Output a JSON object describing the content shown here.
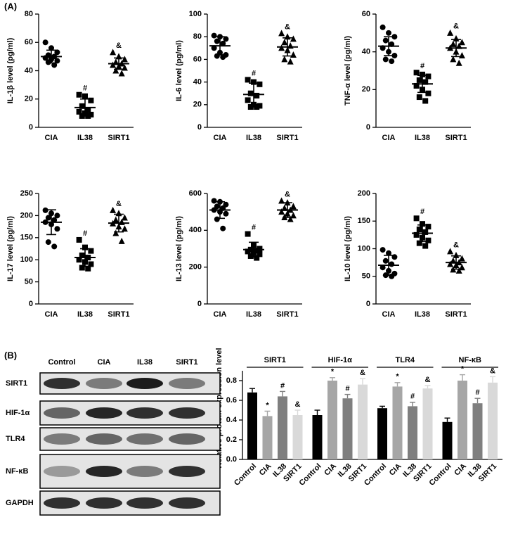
{
  "panel_labels": [
    "(A)",
    "(B)"
  ],
  "blot": {
    "columns": [
      "Control",
      "CIA",
      "IL38",
      "SIRT1"
    ],
    "rows": [
      "SIRT1",
      "HIF-1α",
      "TLR4",
      "NF-κB",
      "GAPDH"
    ]
  },
  "chart_data": [
    {
      "type": "dot",
      "ylabel": "IL-1β level (pg/ml)",
      "categories": [
        "CIA",
        "IL38",
        "SIRT1"
      ],
      "markers": [
        "circle",
        "square",
        "triangle"
      ],
      "color": "#000000",
      "points": [
        [
          60,
          56,
          53,
          51,
          50,
          49,
          48,
          47,
          46,
          44
        ],
        [
          23,
          22,
          19,
          15,
          12,
          11,
          10,
          9,
          8,
          8
        ],
        [
          53,
          50,
          48,
          46,
          45,
          44,
          43,
          42,
          40,
          38
        ]
      ],
      "means": [
        50,
        14,
        45
      ],
      "sds": [
        4.5,
        6,
        4
      ],
      "annotations": [
        null,
        "#",
        "&"
      ],
      "ylim": [
        0,
        80
      ],
      "yticks": [
        0,
        20,
        40,
        60,
        80
      ]
    },
    {
      "type": "dot",
      "ylabel": "IL-6 level (pg/ml)",
      "categories": [
        "CIA",
        "IL38",
        "SIRT1"
      ],
      "markers": [
        "circle",
        "square",
        "triangle"
      ],
      "color": "#000000",
      "points": [
        [
          81,
          80,
          78,
          76,
          74,
          70,
          66,
          64,
          63,
          62
        ],
        [
          42,
          40,
          38,
          30,
          28,
          24,
          20,
          19,
          18,
          18
        ],
        [
          83,
          80,
          78,
          75,
          72,
          70,
          68,
          64,
          60,
          58
        ]
      ],
      "means": [
        72,
        29,
        71
      ],
      "sds": [
        8,
        10,
        8
      ],
      "annotations": [
        null,
        "#",
        "&"
      ],
      "ylim": [
        0,
        100
      ],
      "yticks": [
        0,
        20,
        40,
        60,
        80,
        100
      ]
    },
    {
      "type": "dot",
      "ylabel": "TNF-α level (pg/ml)",
      "categories": [
        "CIA",
        "IL38",
        "SIRT1"
      ],
      "markers": [
        "circle",
        "square",
        "triangle"
      ],
      "color": "#000000",
      "points": [
        [
          53,
          50,
          48,
          46,
          44,
          42,
          40,
          38,
          36,
          35
        ],
        [
          29,
          28,
          27,
          25,
          24,
          22,
          20,
          18,
          16,
          14
        ],
        [
          50,
          47,
          45,
          44,
          43,
          42,
          40,
          38,
          36,
          34
        ]
      ],
      "means": [
        43,
        23,
        42
      ],
      "sds": [
        5,
        4.5,
        4.5
      ],
      "annotations": [
        null,
        "#",
        "&"
      ],
      "ylim": [
        0,
        60
      ],
      "yticks": [
        0,
        20,
        40,
        60
      ]
    },
    {
      "type": "dot",
      "ylabel": "IL-17 level (pg/ml)",
      "categories": [
        "CIA",
        "IL38",
        "SIRT1"
      ],
      "markers": [
        "circle",
        "square",
        "triangle"
      ],
      "color": "#000000",
      "points": [
        [
          212,
          205,
          200,
          195,
          190,
          185,
          180,
          170,
          140,
          130
        ],
        [
          145,
          128,
          120,
          110,
          105,
          100,
          95,
          90,
          82,
          80
        ],
        [
          212,
          205,
          195,
          190,
          185,
          182,
          175,
          170,
          160,
          142
        ]
      ],
      "means": [
        185,
        105,
        183
      ],
      "sds": [
        28,
        20,
        20
      ],
      "annotations": [
        null,
        "#",
        "&"
      ],
      "ylim": [
        0,
        250
      ],
      "yticks": [
        0,
        50,
        100,
        150,
        200,
        250
      ]
    },
    {
      "type": "dot",
      "ylabel": "IL-13 level (pg/ml)",
      "categories": [
        "CIA",
        "IL38",
        "SIRT1"
      ],
      "markers": [
        "circle",
        "square",
        "triangle"
      ],
      "color": "#000000",
      "points": [
        [
          560,
          555,
          540,
          530,
          520,
          510,
          500,
          490,
          460,
          410
        ],
        [
          380,
          320,
          300,
          295,
          290,
          285,
          280,
          270,
          260,
          250
        ],
        [
          560,
          550,
          530,
          520,
          510,
          500,
          490,
          480,
          470,
          460
        ]
      ],
      "means": [
        510,
        295,
        510
      ],
      "sds": [
        45,
        40,
        40
      ],
      "annotations": [
        null,
        "#",
        "&"
      ],
      "ylim": [
        0,
        600
      ],
      "yticks": [
        0,
        200,
        400,
        600
      ]
    },
    {
      "type": "dot",
      "ylabel": "IL-10 level (pg/ml)",
      "categories": [
        "CIA",
        "IL38",
        "SIRT1"
      ],
      "markers": [
        "circle",
        "square",
        "triangle"
      ],
      "color": "#000000",
      "points": [
        [
          98,
          92,
          85,
          78,
          72,
          66,
          60,
          55,
          52,
          50
        ],
        [
          155,
          145,
          140,
          135,
          130,
          125,
          120,
          115,
          110,
          105
        ],
        [
          95,
          88,
          82,
          78,
          75,
          72,
          70,
          66,
          62,
          60
        ]
      ],
      "means": [
        70,
        128,
        75
      ],
      "sds": [
        18,
        15,
        12
      ],
      "annotations": [
        null,
        "#",
        "&"
      ],
      "ylim": [
        0,
        200
      ],
      "yticks": [
        0,
        50,
        100,
        150,
        200
      ]
    },
    {
      "type": "bar",
      "ylabel": "Relative protein expression level",
      "categories": [
        "SIRT1",
        "HIF-1α",
        "TLR4",
        "NF-κB"
      ],
      "series": [
        {
          "name": "Control",
          "color": "#000000",
          "values": [
            0.68,
            0.45,
            0.52,
            0.38
          ],
          "errors": [
            0.04,
            0.05,
            0.02,
            0.04
          ],
          "annotations": [
            null,
            null,
            null,
            null
          ]
        },
        {
          "name": "CIA",
          "color": "#a6a6a6",
          "values": [
            0.44,
            0.8,
            0.74,
            0.8
          ],
          "errors": [
            0.05,
            0.03,
            0.04,
            0.06
          ],
          "annotations": [
            "*",
            "*",
            "*",
            "*"
          ]
        },
        {
          "name": "IL38",
          "color": "#7f7f7f",
          "values": [
            0.64,
            0.62,
            0.54,
            0.57
          ],
          "errors": [
            0.05,
            0.04,
            0.04,
            0.05
          ],
          "annotations": [
            "#",
            "#",
            "#",
            "#"
          ]
        },
        {
          "name": "SIRT1",
          "color": "#d9d9d9",
          "values": [
            0.45,
            0.76,
            0.72,
            0.78
          ],
          "errors": [
            0.05,
            0.06,
            0.03,
            0.06
          ],
          "annotations": [
            "&",
            "&",
            "&",
            "&"
          ]
        }
      ],
      "ylim": [
        0,
        0.9
      ],
      "yticks": [
        {
          "value": 0,
          "label": "0.0"
        },
        0.2,
        0.4,
        0.6,
        0.8
      ]
    }
  ]
}
